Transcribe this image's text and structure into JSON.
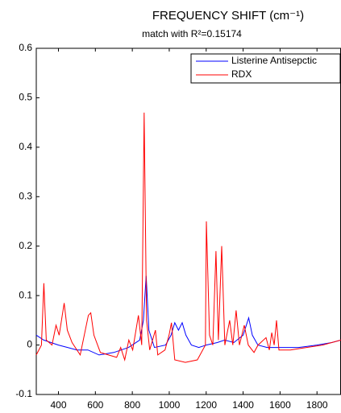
{
  "chart_data": {
    "type": "line",
    "title": "FREQUENCY SHIFT (cm⁻¹)",
    "subtitle": "match with R²=0.15174",
    "xlim": [
      280,
      1930
    ],
    "xticks": [
      400,
      600,
      800,
      1000,
      1200,
      1400,
      1600,
      1800
    ],
    "ylim": [
      -0.1,
      0.6
    ],
    "yticks": [
      -0.1,
      0,
      0.1,
      0.2,
      0.3,
      0.4,
      0.5,
      0.6
    ],
    "legend": "upper right",
    "series": [
      {
        "name": "Listerine Antisepctic",
        "color": "#0000ff",
        "x": [
          280,
          320,
          360,
          400,
          450,
          500,
          560,
          620,
          700,
          780,
          840,
          860,
          875,
          890,
          920,
          980,
          1010,
          1030,
          1050,
          1070,
          1090,
          1120,
          1160,
          1200,
          1260,
          1300,
          1350,
          1400,
          1430,
          1450,
          1480,
          1530,
          1600,
          1700,
          1800,
          1880,
          1930
        ],
        "values": [
          0.02,
          0.01,
          0.005,
          0.0,
          -0.005,
          -0.01,
          -0.01,
          -0.02,
          -0.015,
          -0.005,
          0.01,
          0.05,
          0.14,
          0.03,
          -0.005,
          0.0,
          0.02,
          0.045,
          0.03,
          0.045,
          0.02,
          0.0,
          -0.005,
          0.0,
          0.005,
          0.01,
          0.005,
          0.02,
          0.055,
          0.02,
          0.0,
          -0.005,
          -0.005,
          -0.005,
          0.0,
          0.005,
          0.01
        ]
      },
      {
        "name": "RDX",
        "color": "#ff0000",
        "x": [
          280,
          308,
          321,
          334,
          365,
          387,
          404,
          431,
          448,
          474,
          518,
          562,
          575,
          592,
          627,
          671,
          715,
          737,
          759,
          781,
          802,
          833,
          851,
          864,
          877,
          894,
          925,
          938,
          977,
          999,
          1012,
          1030,
          1087,
          1152,
          1196,
          1201,
          1218,
          1236,
          1253,
          1266,
          1284,
          1301,
          1327,
          1344,
          1362,
          1380,
          1406,
          1428,
          1459,
          1481,
          1524,
          1542,
          1555,
          1568,
          1581,
          1594,
          1656,
          1743,
          1830,
          1930
        ],
        "values": [
          -0.02,
          0.0,
          0.125,
          0.01,
          0.0,
          0.04,
          0.02,
          0.085,
          0.03,
          0.005,
          -0.02,
          0.06,
          0.065,
          0.02,
          -0.015,
          -0.02,
          -0.025,
          -0.005,
          -0.03,
          0.01,
          -0.01,
          0.06,
          0.0,
          0.47,
          0.05,
          -0.01,
          0.03,
          -0.02,
          -0.01,
          0.02,
          0.045,
          -0.03,
          -0.035,
          -0.03,
          0.0,
          0.25,
          0.02,
          0.0,
          0.19,
          0.01,
          0.2,
          0.0,
          0.05,
          0.0,
          0.07,
          0.0,
          0.04,
          0.0,
          -0.015,
          0.0,
          0.015,
          -0.01,
          0.025,
          0.0,
          0.05,
          -0.01,
          -0.01,
          -0.005,
          0.0,
          0.01
        ]
      }
    ]
  }
}
